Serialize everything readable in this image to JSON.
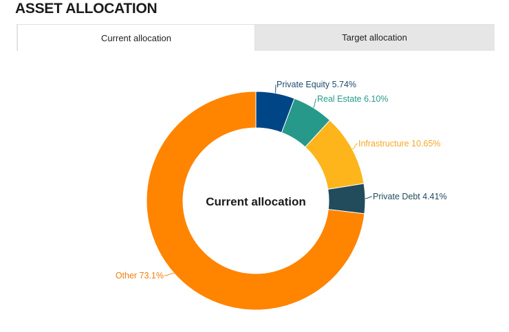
{
  "page": {
    "title": "ASSET ALLOCATION"
  },
  "tabs": [
    {
      "label": "Current allocation",
      "active": true
    },
    {
      "label": "Target allocation",
      "active": false
    }
  ],
  "chart_data": {
    "type": "pie",
    "variant": "donut",
    "center_label": "Current allocation",
    "slices": [
      {
        "label": "Private Equity 5.74%",
        "name": "Private Equity",
        "value": 5.74,
        "color": "#004687"
      },
      {
        "label": "Real Estate 6.10%",
        "name": "Real Estate",
        "value": 6.1,
        "color": "#27998a"
      },
      {
        "label": "Infrastructure 10.65%",
        "name": "Infrastructure",
        "value": 10.65,
        "color": "#fdb51b"
      },
      {
        "label": "Private Debt 4.41%",
        "name": "Private Debt",
        "value": 4.41,
        "color": "#224b5c"
      },
      {
        "label": "Other 73.1%",
        "name": "Other",
        "value": 73.1,
        "color": "#ff8400"
      }
    ],
    "label_colors": [
      "#1d4a6e",
      "#27998a",
      "#f6a623",
      "#224b5c",
      "#f07d0d"
    ]
  }
}
